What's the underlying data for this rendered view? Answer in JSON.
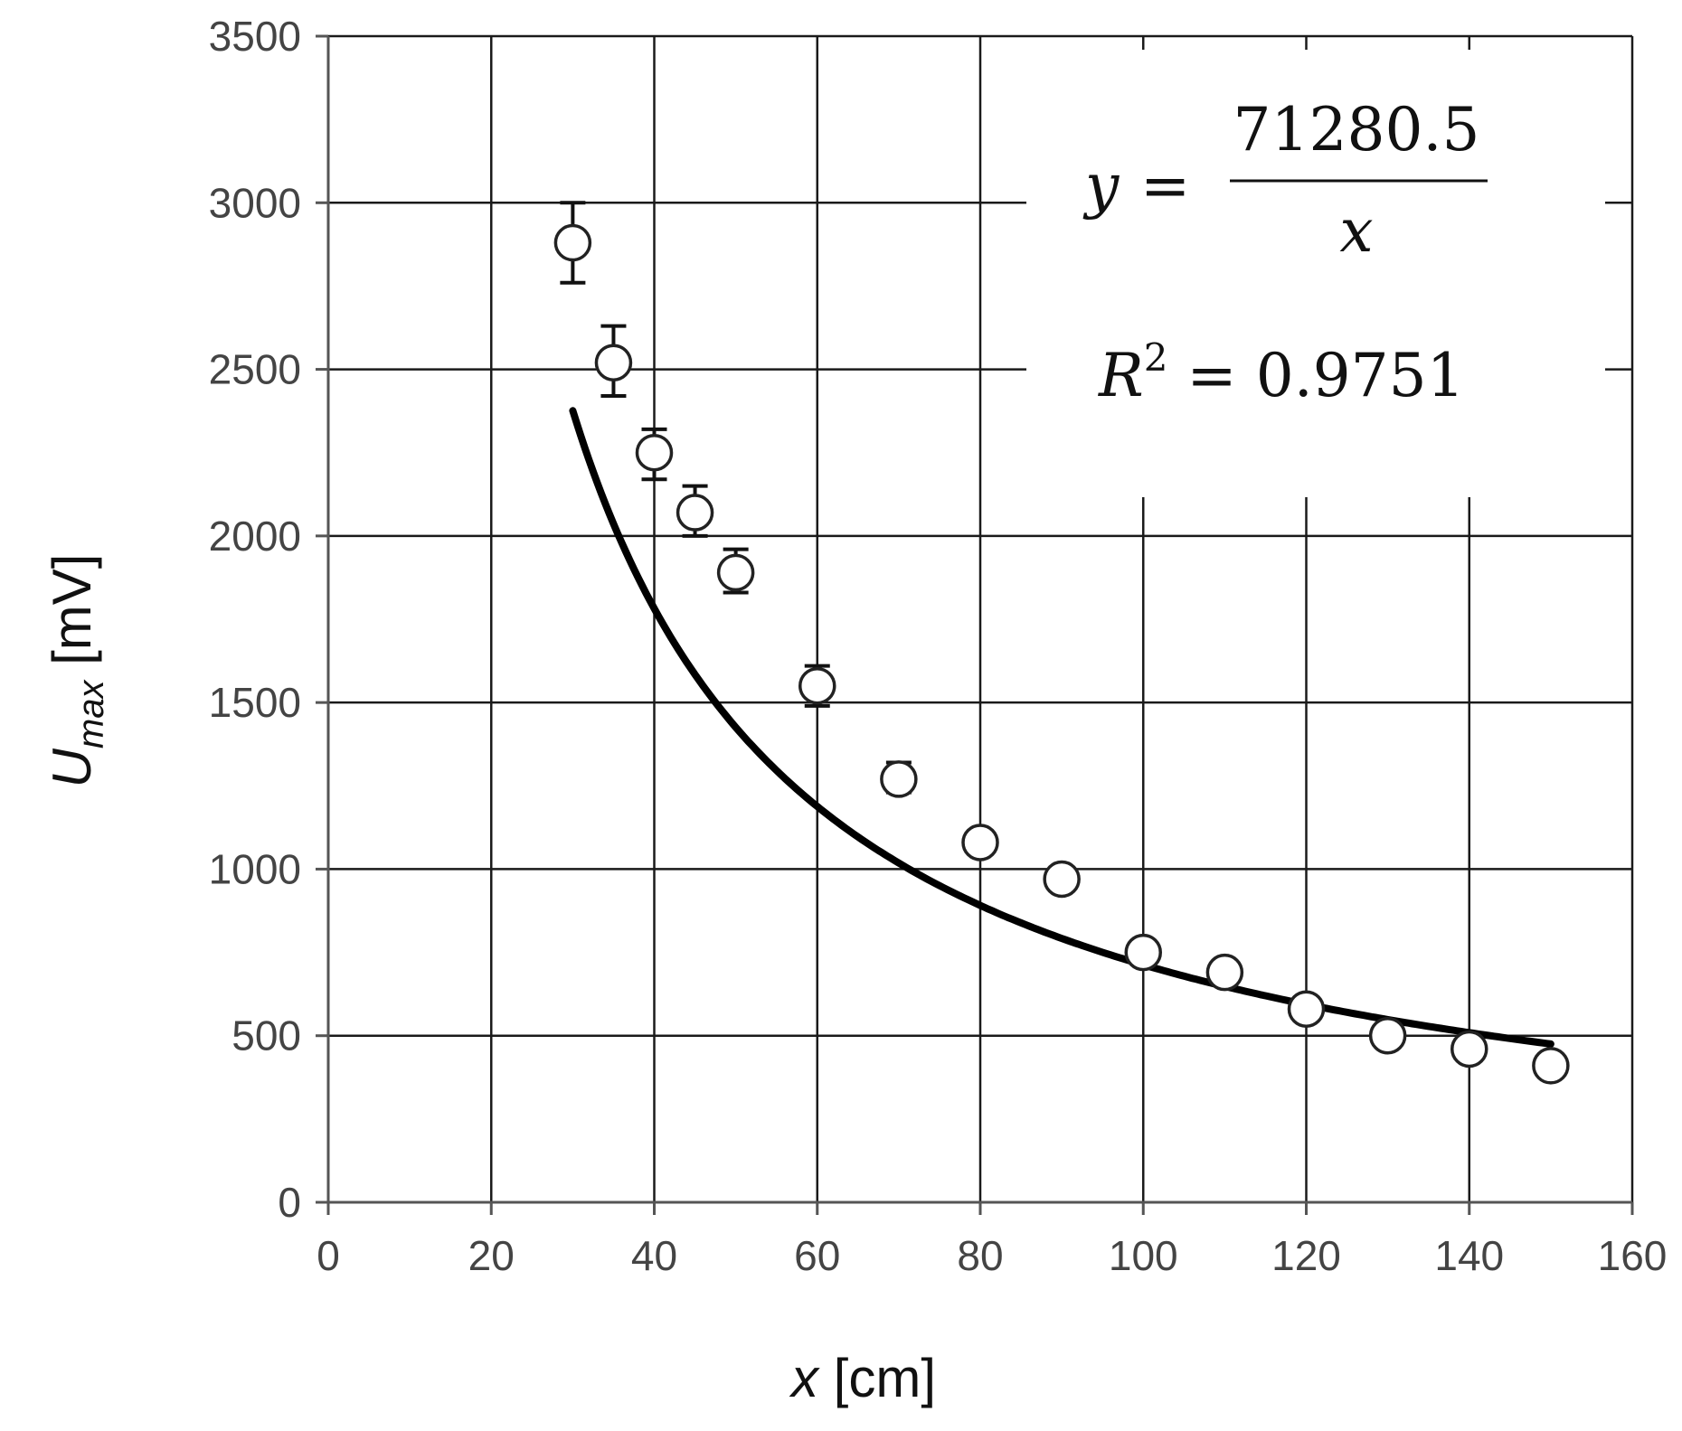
{
  "chart_data": {
    "type": "scatter",
    "xlabel": {
      "main": "x",
      "unit": " [cm]"
    },
    "ylabel": {
      "main": "U",
      "sub": "max",
      "unit": " [mV]"
    },
    "xlim": [
      0,
      160
    ],
    "ylim": [
      0,
      3500
    ],
    "xticks": [
      0,
      20,
      40,
      60,
      80,
      100,
      120,
      140,
      160
    ],
    "yticks": [
      0,
      500,
      1000,
      1500,
      2000,
      2500,
      3000,
      3500
    ],
    "grid": true,
    "series": [
      {
        "kind": "points",
        "marker": "open-circle",
        "x": [
          30,
          35,
          40,
          45,
          50,
          60,
          70,
          80,
          90,
          100,
          110,
          120,
          130,
          140,
          150
        ],
        "y": [
          2880,
          2520,
          2250,
          2070,
          1890,
          1550,
          1270,
          1080,
          970,
          750,
          690,
          580,
          500,
          460,
          410
        ],
        "error_x": [
          30,
          35,
          40,
          45,
          50,
          60,
          70
        ],
        "error_low": [
          2760,
          2420,
          2170,
          2000,
          1830,
          1490,
          1230
        ],
        "error_high": [
          3000,
          2630,
          2320,
          2150,
          1960,
          1610,
          1320
        ]
      },
      {
        "kind": "fit-curve",
        "formula": "y = a / x",
        "a": 71280.5,
        "x_range": [
          30,
          150
        ]
      }
    ],
    "annotations": {
      "equation": {
        "lhs": "y",
        "eq": " = ",
        "numerator": "71280.5",
        "denominator": "x"
      },
      "r_squared": {
        "base": "R",
        "sup": "2",
        "rest": " = 0.9751"
      }
    },
    "colors": {
      "grid": "#1a1a1a",
      "curve": "#000000",
      "marker_fill": "#ffffff",
      "marker_edge": "#222222",
      "tick_text": "#444444"
    }
  }
}
